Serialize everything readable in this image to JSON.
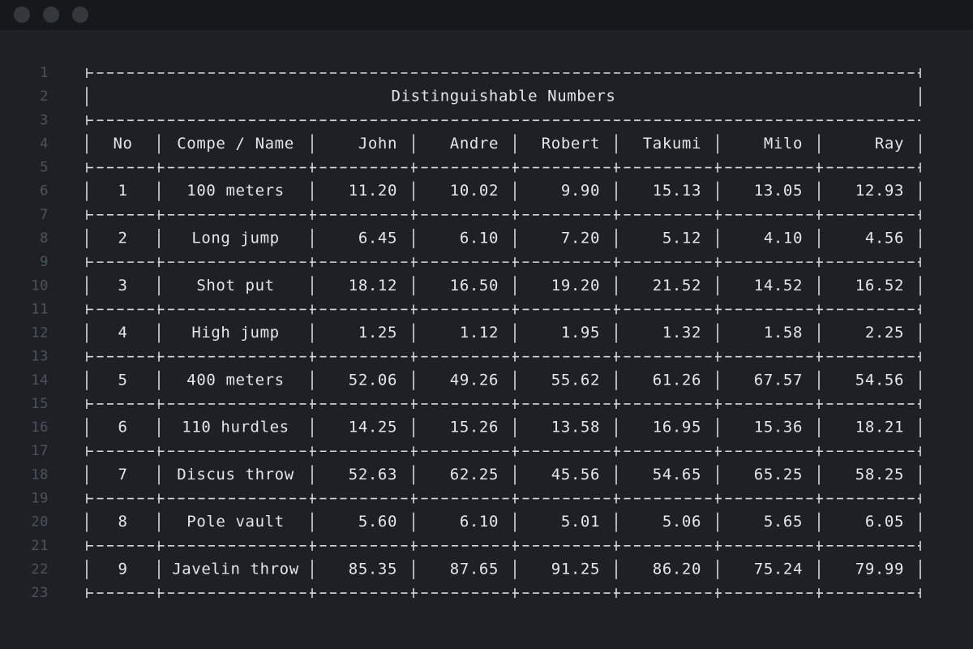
{
  "editor": {
    "line_numbers": [
      1,
      2,
      3,
      4,
      5,
      6,
      7,
      8,
      9,
      10,
      11,
      12,
      13,
      14,
      15,
      16,
      17,
      18,
      19,
      20,
      21,
      22,
      23
    ],
    "table": {
      "title": "Distinguishable Numbers",
      "columns": [
        "No",
        "Compe / Name",
        "John",
        "Andre",
        "Robert",
        "Takumi",
        "Milo",
        "Ray"
      ],
      "rows": [
        [
          1,
          "100 meters",
          "11.20",
          "10.02",
          "9.90",
          "15.13",
          "13.05",
          "12.93"
        ],
        [
          2,
          "Long jump",
          "6.45",
          "6.10",
          "7.20",
          "5.12",
          "4.10",
          "4.56"
        ],
        [
          3,
          "Shot put",
          "18.12",
          "16.50",
          "19.20",
          "21.52",
          "14.52",
          "16.52"
        ],
        [
          4,
          "High jump",
          "1.25",
          "1.12",
          "1.95",
          "1.32",
          "1.58",
          "2.25"
        ],
        [
          5,
          "400 meters",
          "52.06",
          "49.26",
          "55.62",
          "61.26",
          "67.57",
          "54.56"
        ],
        [
          6,
          "110 hurdles",
          "14.25",
          "15.26",
          "13.58",
          "16.95",
          "15.36",
          "18.21"
        ],
        [
          7,
          "Discus throw",
          "52.63",
          "62.25",
          "45.56",
          "54.65",
          "65.25",
          "58.25"
        ],
        [
          8,
          "Pole vault",
          "5.60",
          "6.10",
          "5.01",
          "5.06",
          "5.65",
          "6.05"
        ],
        [
          9,
          "Javelin throw",
          "85.35",
          "87.65",
          "91.25",
          "86.20",
          "75.24",
          "79.99"
        ]
      ]
    }
  }
}
